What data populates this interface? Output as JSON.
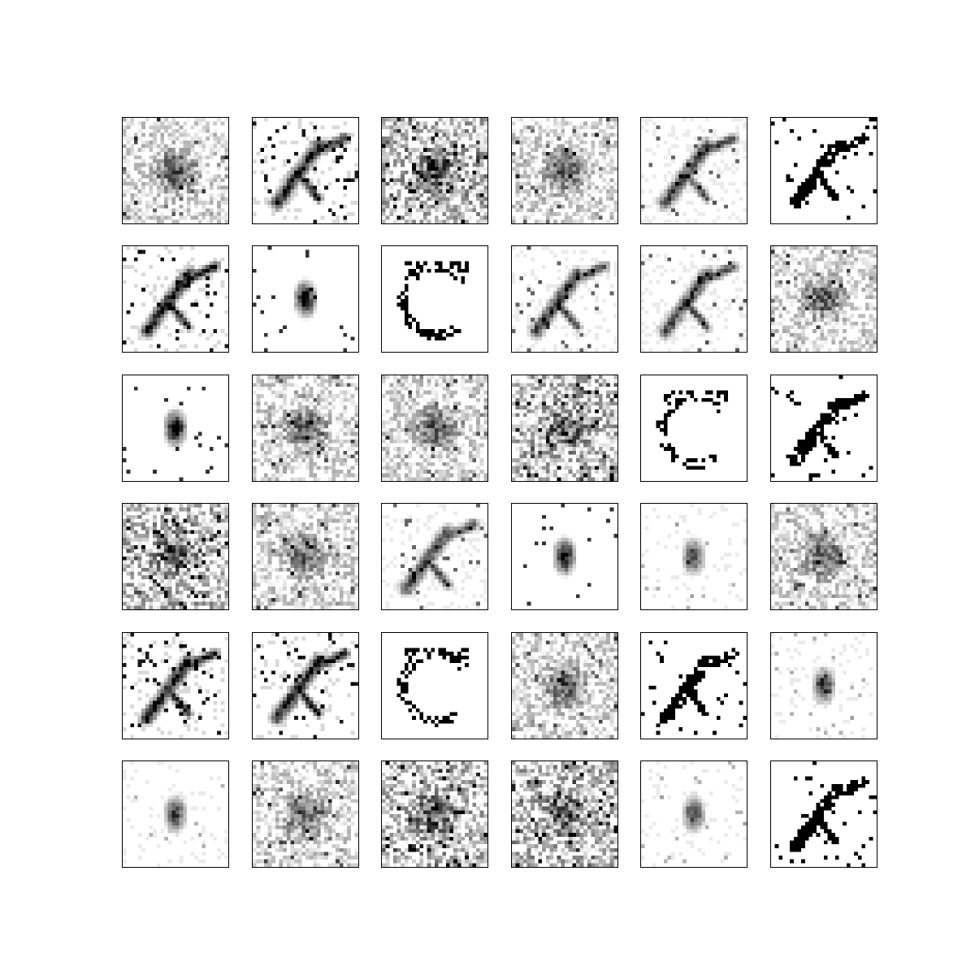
{
  "figure": {
    "grid": {
      "rows": 6,
      "cols": 6
    },
    "pixel_resolution": 28,
    "colormap": "grayscale-inverted",
    "tiles": [
      {
        "style": "diffuse",
        "glyph": "diffuse-blob",
        "seed": 11
      },
      {
        "style": "stroke-noisy",
        "glyph": "diagonal-stroke",
        "seed": 12
      },
      {
        "style": "diffuse-heavy",
        "glyph": "diffuse-blob",
        "seed": 13
      },
      {
        "style": "diffuse",
        "glyph": "diffuse-blob",
        "seed": 14
      },
      {
        "style": "stroke-light",
        "glyph": "diagonal-stroke",
        "seed": 15
      },
      {
        "style": "stroke-sharp",
        "glyph": "diagonal-stroke",
        "seed": 16
      },
      {
        "style": "stroke-noisy",
        "glyph": "diagonal-stroke",
        "seed": 21
      },
      {
        "style": "blob-clean",
        "glyph": "compact-blob",
        "seed": 22
      },
      {
        "style": "sparse-curve",
        "glyph": "c-shape",
        "seed": 23
      },
      {
        "style": "stroke-light",
        "glyph": "diagonal-stroke",
        "seed": 24
      },
      {
        "style": "stroke-light",
        "glyph": "diagonal-stroke",
        "seed": 25
      },
      {
        "style": "diffuse",
        "glyph": "diffuse-blob",
        "seed": 26
      },
      {
        "style": "blob-clean",
        "glyph": "compact-blob",
        "seed": 31
      },
      {
        "style": "diffuse",
        "glyph": "diffuse-blob",
        "seed": 32
      },
      {
        "style": "diffuse",
        "glyph": "diffuse-blob",
        "seed": 33
      },
      {
        "style": "diffuse-heavy",
        "glyph": "diffuse-blob",
        "seed": 34
      },
      {
        "style": "sparse-curve",
        "glyph": "c-shape",
        "seed": 35
      },
      {
        "style": "stroke-sharp",
        "glyph": "diagonal-stroke",
        "seed": 36
      },
      {
        "style": "diffuse-heavy",
        "glyph": "diffuse-blob",
        "seed": 41
      },
      {
        "style": "diffuse",
        "glyph": "diffuse-blob",
        "seed": 42
      },
      {
        "style": "stroke-light",
        "glyph": "diagonal-stroke",
        "seed": 43
      },
      {
        "style": "blob-clean",
        "glyph": "compact-blob",
        "seed": 44
      },
      {
        "style": "blob-light",
        "glyph": "compact-blob",
        "seed": 45
      },
      {
        "style": "diffuse",
        "glyph": "diffuse-blob",
        "seed": 46
      },
      {
        "style": "stroke-noisy",
        "glyph": "diagonal-stroke",
        "seed": 51
      },
      {
        "style": "stroke-noisy",
        "glyph": "diagonal-stroke",
        "seed": 52
      },
      {
        "style": "sparse-curve",
        "glyph": "c-shape",
        "seed": 53
      },
      {
        "style": "diffuse",
        "glyph": "diffuse-blob",
        "seed": 54
      },
      {
        "style": "stroke-sharp",
        "glyph": "diagonal-stroke",
        "seed": 55
      },
      {
        "style": "blob-light",
        "glyph": "compact-blob",
        "seed": 56
      },
      {
        "style": "blob-light",
        "glyph": "compact-blob",
        "seed": 61
      },
      {
        "style": "diffuse",
        "glyph": "diffuse-blob",
        "seed": 62
      },
      {
        "style": "diffuse-heavy",
        "glyph": "diffuse-blob",
        "seed": 63
      },
      {
        "style": "diffuse-heavy",
        "glyph": "diffuse-blob",
        "seed": 64
      },
      {
        "style": "blob-light",
        "glyph": "compact-blob",
        "seed": 65
      },
      {
        "style": "stroke-sharp",
        "glyph": "diagonal-stroke",
        "seed": 66
      }
    ]
  }
}
